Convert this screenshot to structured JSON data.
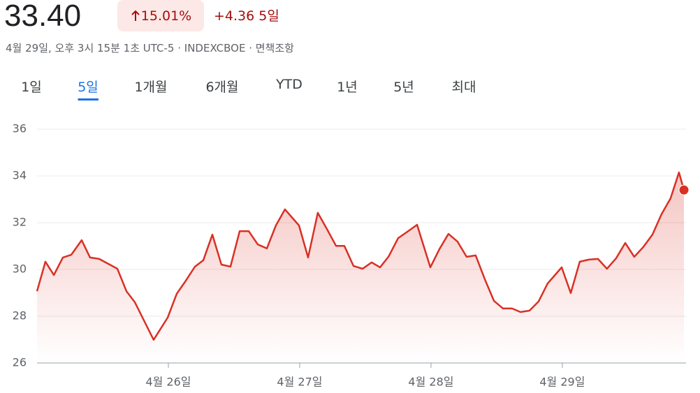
{
  "header": {
    "price": "33.40",
    "change_percent": "15.01%",
    "change_amount": "+4.36",
    "change_period": "5일",
    "subtitle": "4월 29일, 오후 3시 15분 1초 UTC-5 · INDEXCBOE · 면책조항"
  },
  "tabs": {
    "items": [
      "1일",
      "5일",
      "1개월",
      "6개월",
      "YTD",
      "1년",
      "5년",
      "최대"
    ],
    "selected": 1
  },
  "chart_data": {
    "type": "line",
    "color": "#d93025",
    "grid": true,
    "xlim": [
      25,
      29.926
    ],
    "ylim": [
      26,
      36
    ],
    "yticks": [
      26,
      28,
      30,
      32,
      34,
      36
    ],
    "xticks": [
      {
        "value": 26,
        "label": "4월 26일"
      },
      {
        "value": 27,
        "label": "4월 27일"
      },
      {
        "value": 28,
        "label": "4월 28일"
      },
      {
        "value": 29,
        "label": "4월 29일"
      }
    ],
    "x": [
      25,
      25.064,
      25.128,
      25.197,
      25.261,
      25.34,
      25.404,
      25.473,
      25.543,
      25.612,
      25.681,
      25.745,
      25.814,
      25.888,
      25.995,
      26.064,
      26.133,
      26.202,
      26.266,
      26.335,
      26.404,
      26.473,
      26.543,
      26.612,
      26.681,
      26.75,
      26.819,
      26.888,
      26.995,
      27.064,
      27.138,
      27.207,
      27.277,
      27.34,
      27.41,
      27.479,
      27.548,
      27.612,
      27.676,
      27.75,
      27.819,
      27.894,
      27.995,
      28.064,
      28.133,
      28.202,
      28.271,
      28.34,
      28.41,
      28.479,
      28.548,
      28.617,
      28.681,
      28.75,
      28.819,
      28.888,
      28.995,
      29.064,
      29.133,
      29.202,
      29.271,
      29.34,
      29.41,
      29.479,
      29.548,
      29.617,
      29.686,
      29.755,
      29.824,
      29.888,
      29.926
    ],
    "values": [
      29.07,
      30.33,
      29.76,
      30.51,
      30.63,
      31.25,
      30.51,
      30.45,
      30.24,
      30.03,
      29.07,
      28.6,
      27.82,
      26.99,
      27.94,
      28.96,
      29.52,
      30.12,
      30.39,
      31.49,
      30.21,
      30.12,
      31.64,
      31.64,
      31.07,
      30.9,
      31.88,
      32.57,
      31.88,
      30.51,
      32.42,
      31.73,
      31.01,
      31.01,
      30.15,
      30.03,
      30.3,
      30.09,
      30.54,
      31.34,
      31.61,
      31.91,
      30.09,
      30.87,
      31.52,
      31.19,
      30.54,
      30.6,
      29.58,
      28.66,
      28.33,
      28.33,
      28.18,
      28.24,
      28.63,
      29.4,
      30.09,
      28.99,
      30.33,
      30.42,
      30.45,
      30.03,
      30.48,
      31.13,
      30.54,
      30.96,
      31.49,
      32.36,
      33.04,
      34.15,
      33.4
    ]
  }
}
